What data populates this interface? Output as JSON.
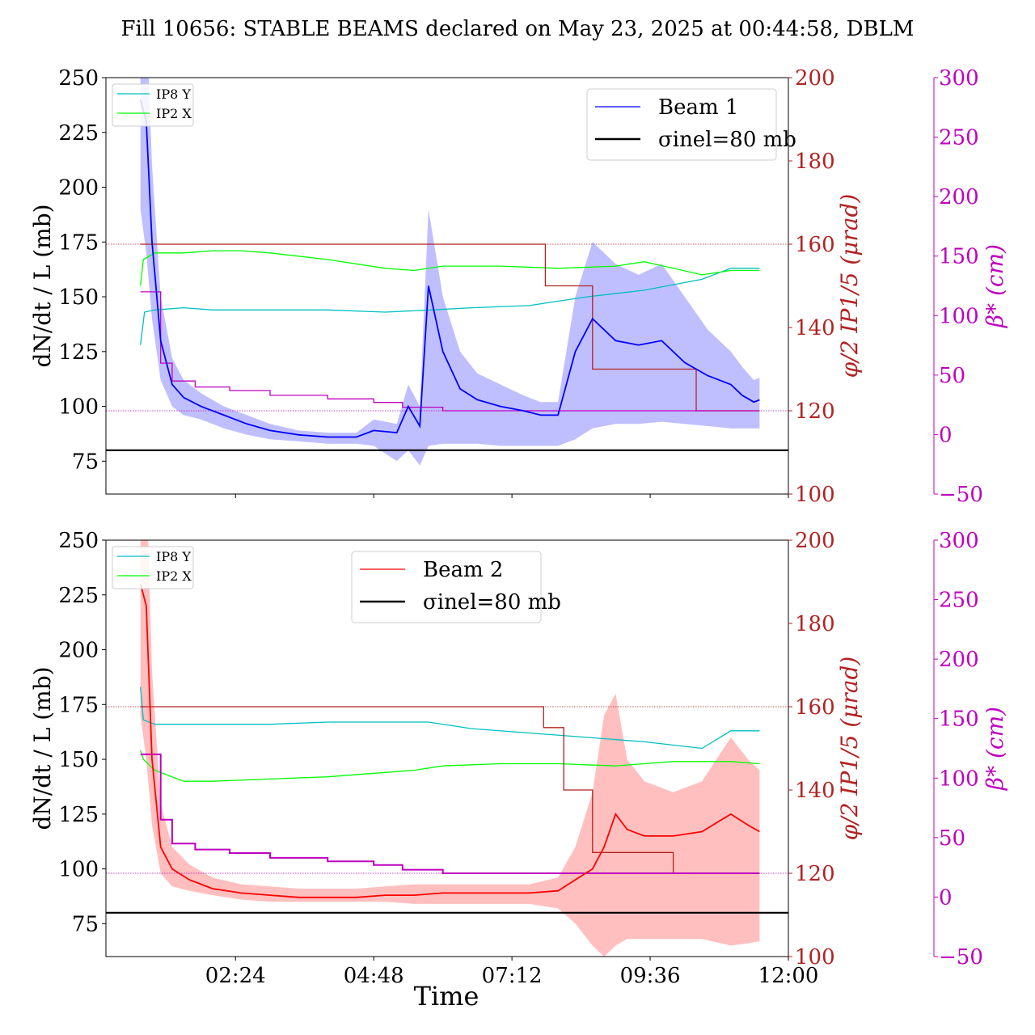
{
  "figure": {
    "title": "Fill 10656: STABLE BEAMS declared on May 23, 2025 at 00:44:58, DBLM",
    "xlabel": "Time",
    "x_ticks": [
      "02:24",
      "04:48",
      "07:12",
      "09:36",
      "12:00"
    ],
    "colors": {
      "beam1": "#0000ff",
      "beam1_band": "#aaaaff",
      "beam2": "#ff0000",
      "beam2_band": "#ffaaaa",
      "sigma": "#000000",
      "crossing_angle": "#b22222",
      "beta_star": "#bf00bf",
      "ip8_y": "#00bfbf",
      "ip2_x": "#00ff00"
    }
  },
  "chart_data": [
    {
      "type": "line",
      "panel": "top",
      "x_unit": "hours since 00:00, May 23, 2025",
      "xlim": [
        0.15,
        12.0
      ],
      "x_tick_values": [
        2.4,
        4.8,
        7.2,
        9.6,
        12.0
      ],
      "ylabel": "dN/dt / L (mb)",
      "ylim": [
        60,
        250
      ],
      "y_ticks": [
        75,
        100,
        125,
        150,
        175,
        200,
        225,
        250
      ],
      "y2label": "φ/2 IP1/5 (μrad)",
      "y2lim": [
        100,
        200
      ],
      "y2_ticks": [
        100,
        120,
        140,
        160,
        180,
        200
      ],
      "y3label": "β* (cm)",
      "y3lim": [
        -50,
        300
      ],
      "y3_ticks": [
        -50,
        0,
        50,
        100,
        150,
        200,
        250,
        300
      ],
      "legend_main": {
        "placement": "upper right",
        "entries": [
          "Beam 1",
          "σinel=80 mb"
        ]
      },
      "legend_ip": {
        "placement": "upper left",
        "entries": [
          "IP8 Y",
          "IP2 X"
        ]
      },
      "sigma_inel": 80,
      "series": [
        {
          "name": "Beam 1",
          "axis": "y",
          "x": [
            0.75,
            0.85,
            0.95,
            1.1,
            1.3,
            1.5,
            1.8,
            2.2,
            2.6,
            3.0,
            3.5,
            4.0,
            4.5,
            4.8,
            5.2,
            5.4,
            5.6,
            5.75,
            6.0,
            6.3,
            6.6,
            7.0,
            7.4,
            7.7,
            8.0,
            8.3,
            8.6,
            9.0,
            9.4,
            9.8,
            10.2,
            10.6,
            11.0,
            11.2,
            11.4,
            11.5
          ],
          "values": [
            240,
            230,
            175,
            130,
            110,
            104,
            100,
            96,
            92,
            89,
            87,
            86,
            86,
            89,
            88,
            100,
            91,
            155,
            125,
            108,
            103,
            100,
            98,
            96,
            96,
            125,
            140,
            130,
            128,
            130,
            120,
            114,
            110,
            105,
            102,
            103
          ],
          "band_upper": [
            300,
            280,
            210,
            150,
            122,
            112,
            106,
            100,
            96,
            92,
            89,
            88,
            88,
            94,
            92,
            110,
            100,
            190,
            150,
            125,
            115,
            110,
            105,
            102,
            102,
            150,
            175,
            165,
            160,
            165,
            150,
            135,
            125,
            118,
            112,
            113
          ],
          "band_lower": [
            190,
            170,
            140,
            112,
            100,
            96,
            94,
            90,
            87,
            85,
            84,
            83,
            83,
            82,
            75,
            80,
            73,
            82,
            83,
            83,
            83,
            82,
            82,
            82,
            82,
            85,
            90,
            92,
            92,
            93,
            92,
            91,
            90,
            90,
            90,
            90
          ]
        },
        {
          "name": "IP8 Y",
          "axis": "y",
          "x": [
            0.75,
            0.82,
            1.0,
            1.5,
            2.0,
            3.0,
            4.0,
            5.0,
            5.8,
            6.5,
            7.5,
            8.5,
            9.5,
            10.5,
            11.0,
            11.5
          ],
          "values": [
            128,
            143,
            144,
            145,
            144,
            144,
            144,
            143,
            144,
            145,
            146,
            150,
            153,
            158,
            163,
            163
          ]
        },
        {
          "name": "IP2 X",
          "axis": "y",
          "x": [
            0.75,
            0.8,
            1.0,
            1.5,
            2.0,
            2.5,
            3.0,
            4.0,
            5.0,
            5.5,
            6.0,
            7.0,
            8.0,
            9.0,
            9.5,
            10.0,
            10.5,
            11.0,
            11.5
          ],
          "values": [
            155,
            167,
            170,
            170,
            171,
            171,
            170,
            167,
            163,
            162,
            164,
            164,
            163,
            164,
            166,
            163,
            160,
            162,
            162
          ]
        },
        {
          "name": "φ/2 IP1/5",
          "axis": "y2",
          "x": [
            0.75,
            5.75,
            7.78,
            7.78,
            8.6,
            10.4,
            11.5
          ],
          "values": [
            160,
            160,
            160,
            150,
            130,
            120,
            120
          ]
        },
        {
          "name": "β*",
          "axis": "y3",
          "x": [
            0.75,
            1.0,
            1.1,
            1.3,
            1.7,
            2.3,
            3.0,
            4.0,
            4.8,
            5.3,
            6.0,
            8.0,
            10.0,
            11.5
          ],
          "values": [
            120,
            120,
            60,
            45,
            40,
            37,
            33,
            30,
            27,
            23,
            20,
            20,
            20,
            20
          ]
        }
      ]
    },
    {
      "type": "line",
      "panel": "bottom",
      "x_unit": "hours since 00:00, May 23, 2025",
      "xlim": [
        0.15,
        12.0
      ],
      "x_tick_values": [
        2.4,
        4.8,
        7.2,
        9.6,
        12.0
      ],
      "ylabel": "dN/dt / L (mb)",
      "ylim": [
        60,
        250
      ],
      "y_ticks": [
        75,
        100,
        125,
        150,
        175,
        200,
        225,
        250
      ],
      "y2label": "φ/2 IP1/5 (μrad)",
      "y2lim": [
        100,
        200
      ],
      "y2_ticks": [
        100,
        120,
        140,
        160,
        180,
        200
      ],
      "y3label": "β* (cm)",
      "y3lim": [
        -50,
        300
      ],
      "y3_ticks": [
        -50,
        0,
        50,
        100,
        150,
        200,
        250,
        300
      ],
      "legend_main": {
        "placement": "upper center",
        "entries": [
          "Beam 2",
          "σinel=80 mb"
        ]
      },
      "legend_ip": {
        "placement": "upper left",
        "entries": [
          "IP8 Y",
          "IP2 X"
        ]
      },
      "sigma_inel": 80,
      "series": [
        {
          "name": "Beam 2",
          "axis": "y",
          "x": [
            0.75,
            0.85,
            0.95,
            1.1,
            1.3,
            1.6,
            2.0,
            2.5,
            3.0,
            3.5,
            4.0,
            4.5,
            5.0,
            5.5,
            6.0,
            6.5,
            7.0,
            7.5,
            8.0,
            8.3,
            8.6,
            8.8,
            9.0,
            9.2,
            9.5,
            10.0,
            10.5,
            11.0,
            11.3,
            11.5
          ],
          "values": [
            230,
            220,
            150,
            110,
            100,
            95,
            91,
            89,
            88,
            87,
            87,
            87,
            88,
            88,
            89,
            89,
            89,
            89,
            90,
            95,
            100,
            110,
            125,
            118,
            115,
            115,
            117,
            125,
            120,
            117
          ],
          "band_upper": [
            300,
            280,
            190,
            130,
            110,
            102,
            96,
            93,
            92,
            91,
            91,
            91,
            92,
            93,
            93,
            93,
            93,
            93,
            96,
            110,
            135,
            170,
            180,
            150,
            140,
            135,
            140,
            160,
            150,
            145
          ],
          "band_lower": [
            170,
            150,
            120,
            98,
            92,
            90,
            88,
            86,
            85,
            85,
            85,
            85,
            85,
            84,
            84,
            84,
            84,
            84,
            82,
            75,
            65,
            60,
            65,
            68,
            68,
            68,
            68,
            65,
            66,
            67
          ]
        },
        {
          "name": "IP8 Y",
          "axis": "y",
          "x": [
            0.75,
            0.8,
            1.0,
            2.0,
            3.0,
            4.0,
            5.0,
            5.75,
            6.5,
            7.5,
            8.5,
            9.5,
            10.5,
            11.0,
            11.5
          ],
          "values": [
            183,
            168,
            166,
            166,
            166,
            167,
            167,
            167,
            164,
            162,
            160,
            158,
            155,
            163,
            163
          ]
        },
        {
          "name": "IP2 X",
          "axis": "y",
          "x": [
            0.75,
            0.8,
            1.0,
            1.5,
            2.0,
            3.0,
            4.0,
            5.0,
            5.5,
            6.0,
            7.0,
            8.0,
            9.0,
            9.5,
            10.0,
            10.5,
            11.0,
            11.5
          ],
          "values": [
            154,
            150,
            145,
            140,
            140,
            141,
            142,
            144,
            145,
            147,
            148,
            148,
            147,
            148,
            149,
            149,
            149,
            148
          ]
        },
        {
          "name": "φ/2 IP1/5",
          "axis": "y2",
          "x": [
            0.75,
            5.75,
            7.75,
            7.75,
            8.1,
            8.6,
            10.0,
            11.5
          ],
          "values": [
            160,
            160,
            160,
            155,
            140,
            125,
            120,
            120
          ]
        },
        {
          "name": "β*",
          "axis": "y3",
          "x": [
            0.75,
            1.0,
            1.1,
            1.3,
            1.7,
            2.3,
            3.0,
            4.0,
            4.8,
            5.3,
            6.0,
            8.0,
            10.0,
            11.5
          ],
          "values": [
            120,
            120,
            65,
            45,
            40,
            37,
            33,
            30,
            27,
            23,
            20,
            20,
            20,
            20
          ]
        }
      ]
    }
  ]
}
